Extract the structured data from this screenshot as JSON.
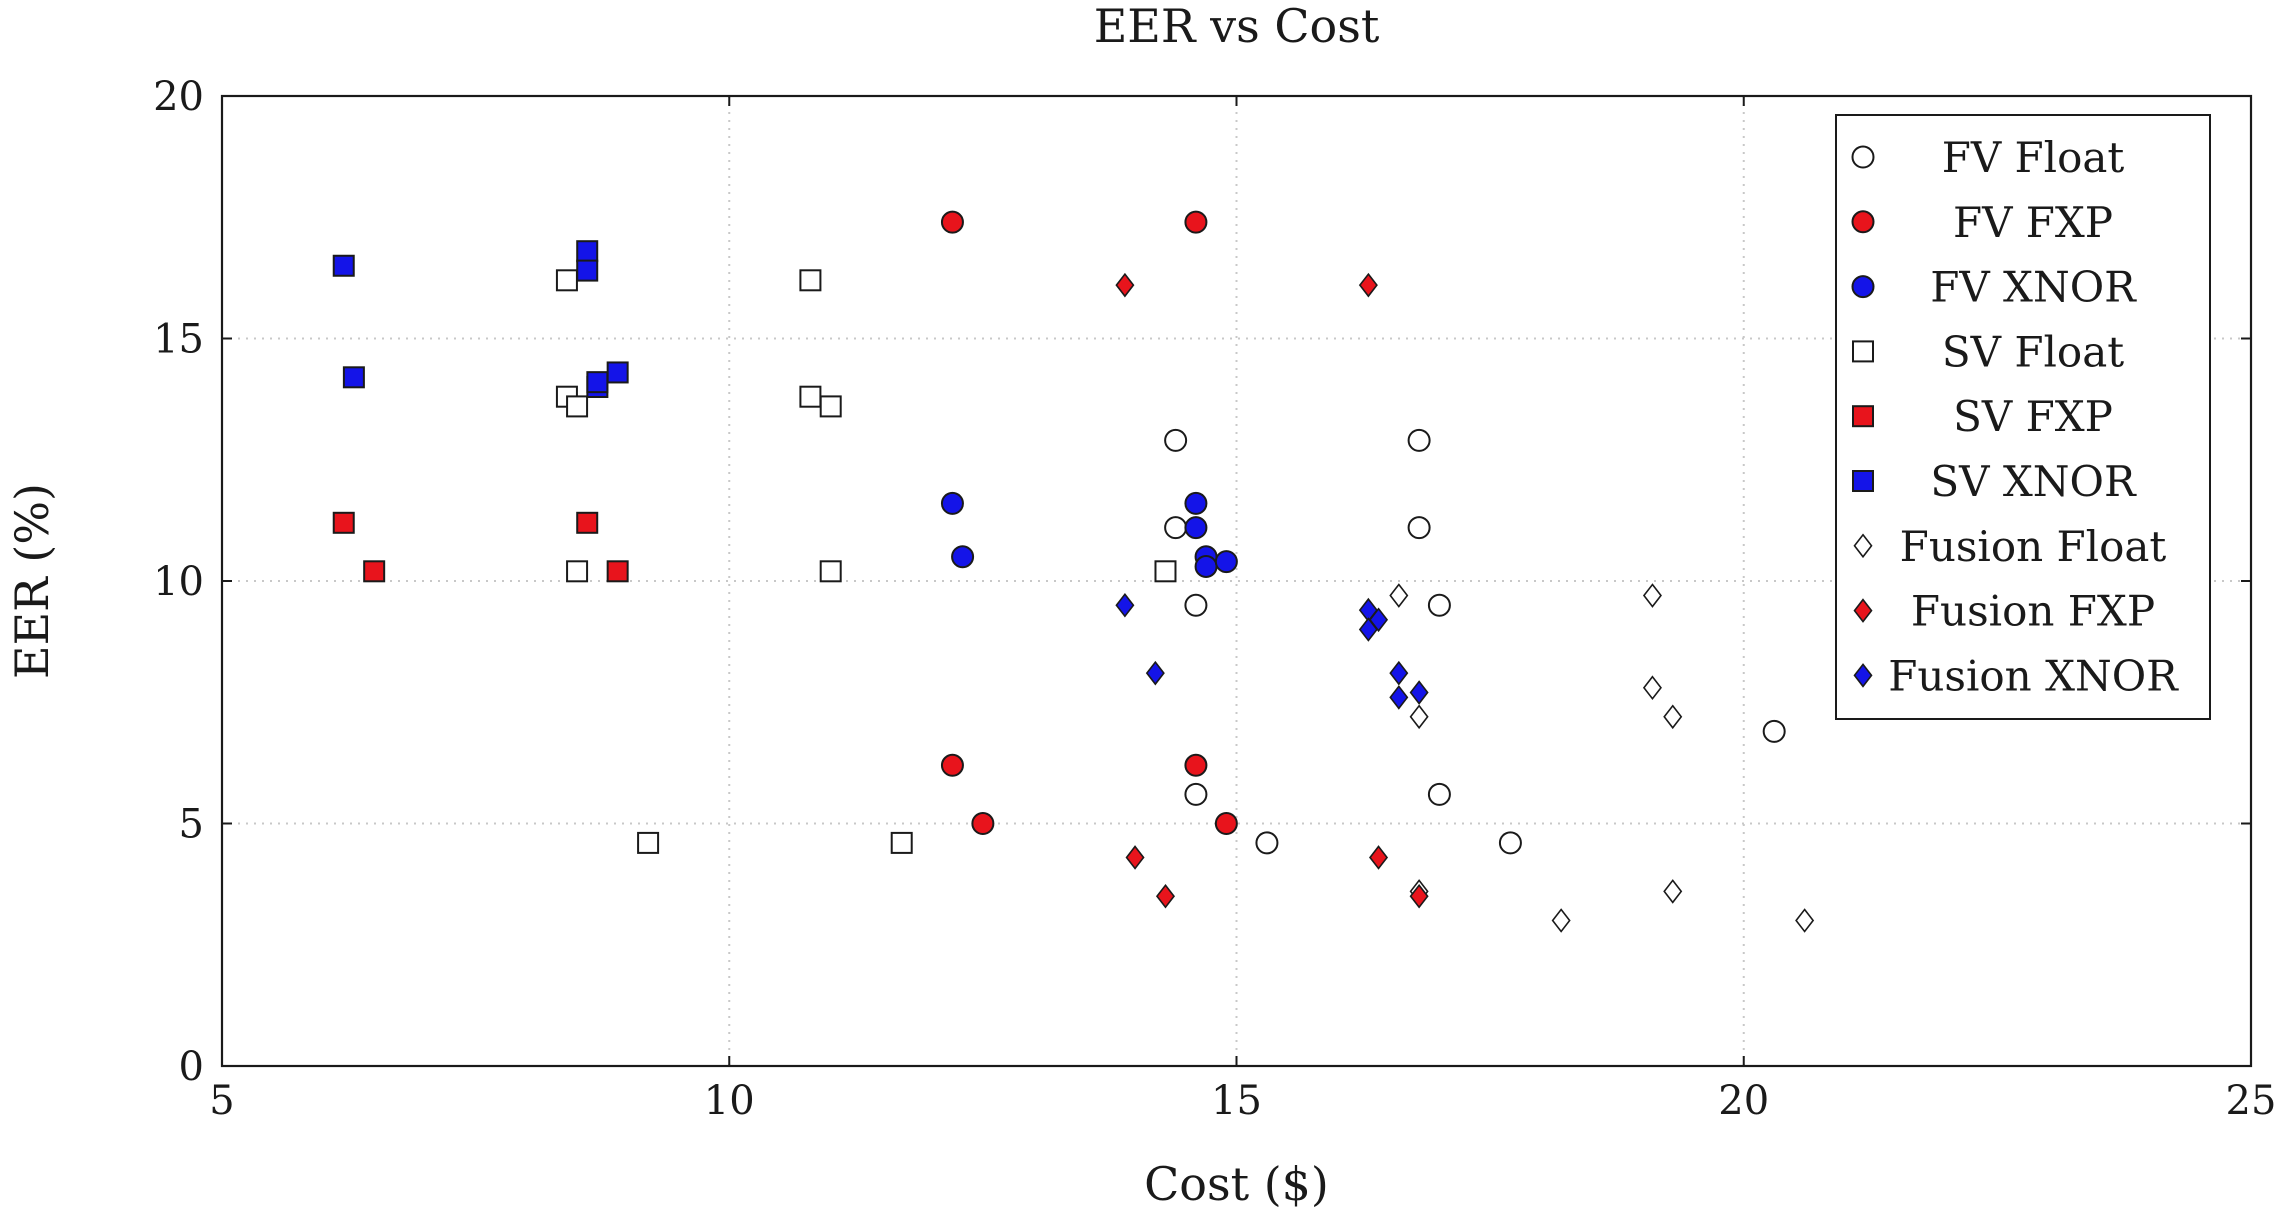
{
  "chart_data": {
    "type": "scatter",
    "title": "EER vs Cost",
    "xlabel": "Cost ($)",
    "ylabel": "EER (%)",
    "xlim": [
      5,
      25
    ],
    "ylim": [
      0,
      20
    ],
    "xticks": [
      5,
      10,
      15,
      20,
      25
    ],
    "yticks": [
      0,
      5,
      10,
      15,
      20
    ],
    "grid": true,
    "legend_position": "top-right",
    "series": [
      {
        "name": "FV Float",
        "marker": "circle",
        "fill": "#ffffff",
        "points": [
          [
            14.4,
            12.9
          ],
          [
            14.4,
            11.1
          ],
          [
            14.6,
            9.5
          ],
          [
            14.6,
            5.6
          ],
          [
            15.3,
            4.6
          ],
          [
            16.8,
            12.9
          ],
          [
            16.8,
            11.1
          ],
          [
            17.0,
            9.5
          ],
          [
            17.0,
            5.6
          ],
          [
            17.7,
            4.6
          ],
          [
            20.3,
            6.9
          ]
        ]
      },
      {
        "name": "FV FXP",
        "marker": "circle",
        "fill": "#e8141c",
        "points": [
          [
            12.2,
            17.4
          ],
          [
            12.2,
            6.2
          ],
          [
            12.5,
            5.0
          ],
          [
            14.6,
            17.4
          ],
          [
            14.6,
            6.2
          ],
          [
            14.9,
            5.0
          ]
        ]
      },
      {
        "name": "FV XNOR",
        "marker": "circle",
        "fill": "#1414e8",
        "points": [
          [
            12.2,
            11.6
          ],
          [
            12.3,
            10.5
          ],
          [
            14.6,
            11.6
          ],
          [
            14.6,
            11.1
          ],
          [
            14.7,
            10.5
          ],
          [
            14.7,
            10.3
          ],
          [
            14.9,
            10.4
          ]
        ]
      },
      {
        "name": "SV Float",
        "marker": "square",
        "fill": "#ffffff",
        "points": [
          [
            8.4,
            16.2
          ],
          [
            8.4,
            13.8
          ],
          [
            8.5,
            13.6
          ],
          [
            8.5,
            10.2
          ],
          [
            9.2,
            4.6
          ],
          [
            10.8,
            16.2
          ],
          [
            10.8,
            13.8
          ],
          [
            11.0,
            13.6
          ],
          [
            11.0,
            10.2
          ],
          [
            11.7,
            4.6
          ],
          [
            14.3,
            10.2
          ]
        ]
      },
      {
        "name": "SV FXP",
        "marker": "square",
        "fill": "#e8141c",
        "points": [
          [
            6.2,
            11.2
          ],
          [
            6.5,
            10.2
          ],
          [
            8.6,
            11.2
          ],
          [
            8.9,
            10.2
          ]
        ]
      },
      {
        "name": "SV XNOR",
        "marker": "square",
        "fill": "#1414e8",
        "points": [
          [
            6.2,
            16.5
          ],
          [
            6.3,
            14.2
          ],
          [
            8.6,
            16.8
          ],
          [
            8.6,
            16.4
          ],
          [
            8.7,
            14.0
          ],
          [
            8.7,
            14.1
          ],
          [
            8.9,
            14.3
          ]
        ]
      },
      {
        "name": "Fusion Float",
        "marker": "diamond",
        "fill": "#ffffff",
        "points": [
          [
            16.6,
            9.7
          ],
          [
            16.8,
            7.2
          ],
          [
            16.8,
            3.6
          ],
          [
            18.2,
            3.0
          ],
          [
            19.1,
            9.7
          ],
          [
            19.1,
            7.8
          ],
          [
            19.3,
            7.2
          ],
          [
            19.3,
            3.6
          ],
          [
            20.6,
            3.0
          ]
        ]
      },
      {
        "name": "Fusion FXP",
        "marker": "diamond",
        "fill": "#e8141c",
        "points": [
          [
            13.9,
            16.1
          ],
          [
            14.0,
            4.3
          ],
          [
            14.3,
            3.5
          ],
          [
            16.3,
            16.1
          ],
          [
            16.4,
            4.3
          ],
          [
            16.8,
            3.5
          ]
        ]
      },
      {
        "name": "Fusion XNOR",
        "marker": "diamond",
        "fill": "#1414e8",
        "points": [
          [
            13.9,
            9.5
          ],
          [
            14.2,
            8.1
          ],
          [
            16.3,
            9.4
          ],
          [
            16.3,
            9.0
          ],
          [
            16.4,
            9.2
          ],
          [
            16.6,
            8.1
          ],
          [
            16.6,
            7.6
          ],
          [
            16.8,
            7.7
          ]
        ]
      }
    ]
  }
}
